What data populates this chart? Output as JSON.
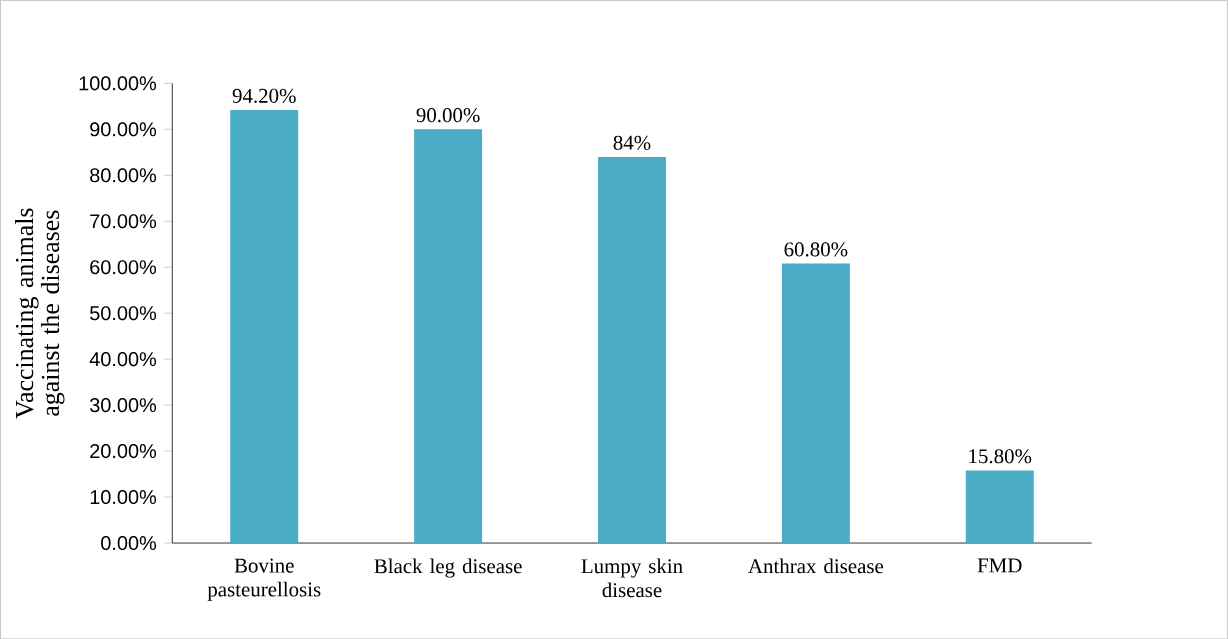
{
  "chart_data": {
    "type": "bar",
    "ylabel": "Vaccinating animals against the diseases",
    "categories": [
      "Bovine pasteurellosis",
      "Black leg disease",
      "Lumpy skin disease",
      "Anthrax disease",
      "FMD"
    ],
    "values": [
      94.2,
      90.0,
      84.0,
      60.8,
      15.8
    ],
    "value_labels": [
      "94.20%",
      "90.00%",
      "84%",
      "60.80%",
      "15.80%"
    ],
    "color": "#4bacc6",
    "ylim": [
      0,
      100
    ],
    "yticks": [
      {
        "value": 0,
        "label": "0.00%"
      },
      {
        "value": 10,
        "label": "10.00%"
      },
      {
        "value": 20,
        "label": "20.00%"
      },
      {
        "value": 30,
        "label": "30.00%"
      },
      {
        "value": 40,
        "label": "40.00%"
      },
      {
        "value": 50,
        "label": "50.00%"
      },
      {
        "value": 60,
        "label": "60.00%"
      },
      {
        "value": 70,
        "label": "70.00%"
      },
      {
        "value": 80,
        "label": "80.00%"
      },
      {
        "value": 90,
        "label": "90.00%"
      },
      {
        "value": 100,
        "label": "100.00%"
      }
    ],
    "stacked": false
  }
}
